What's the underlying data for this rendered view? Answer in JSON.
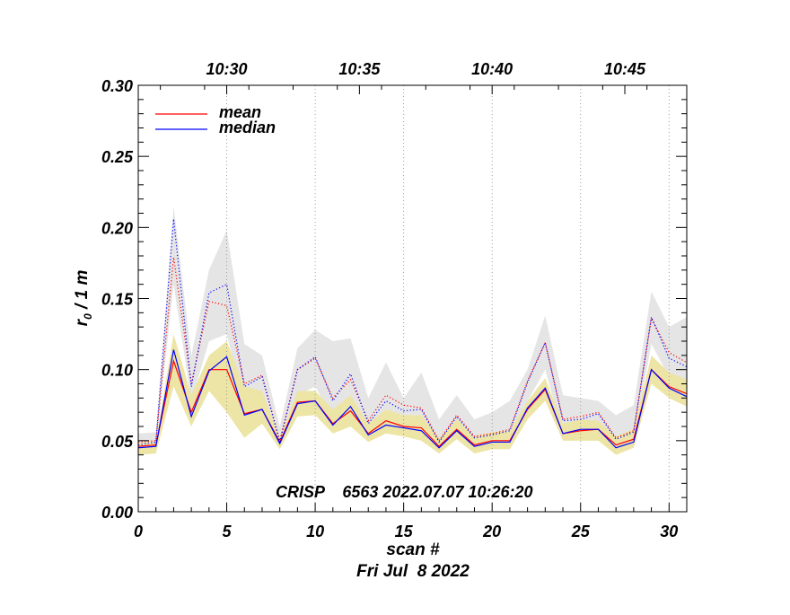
{
  "chart_data": {
    "type": "line",
    "title": "",
    "xlabel": "scan #",
    "xlabel2": "Fri Jul  8 2022",
    "ylabel_main": "r",
    "ylabel_sub": "0",
    "ylabel_rest": " / 1 m",
    "annotation": "CRISP    6563 2022.07.07 10:26:20",
    "xlim": [
      0,
      31
    ],
    "ylim": [
      0,
      0.3
    ],
    "x_ticks": [
      {
        "value": 0,
        "label": "0"
      },
      {
        "value": 5,
        "label": "5"
      },
      {
        "value": 10,
        "label": "10"
      },
      {
        "value": 15,
        "label": "15"
      },
      {
        "value": 20,
        "label": "20"
      },
      {
        "value": 25,
        "label": "25"
      },
      {
        "value": 30,
        "label": "30"
      }
    ],
    "y_ticks": [
      {
        "value": 0.0,
        "label": "0.00"
      },
      {
        "value": 0.05,
        "label": "0.05"
      },
      {
        "value": 0.1,
        "label": "0.10"
      },
      {
        "value": 0.15,
        "label": "0.15"
      },
      {
        "value": 0.2,
        "label": "0.20"
      },
      {
        "value": 0.25,
        "label": "0.25"
      },
      {
        "value": 0.3,
        "label": "0.30"
      }
    ],
    "top_ticks": [
      {
        "value": 5,
        "label": "10:30"
      },
      {
        "value": 12.5,
        "label": "10:35"
      },
      {
        "value": 20,
        "label": "10:40"
      },
      {
        "value": 27.5,
        "label": "10:45"
      }
    ],
    "time_gridlines": [
      5,
      10,
      15,
      20,
      25,
      30
    ],
    "grid": "vertical dotted",
    "legend_position": "top-left",
    "x": [
      0,
      1,
      2,
      3,
      4,
      5,
      6,
      7,
      8,
      9,
      10,
      11,
      12,
      13,
      14,
      15,
      16,
      17,
      18,
      19,
      20,
      21,
      22,
      23,
      24,
      25,
      26,
      27,
      28,
      29,
      30,
      31
    ],
    "series": [
      {
        "name": "mean",
        "color": "#ff0000",
        "style": "solid",
        "values": [
          0.046,
          0.047,
          0.106,
          0.07,
          0.1,
          0.1,
          0.069,
          0.072,
          0.049,
          0.077,
          0.078,
          0.062,
          0.071,
          0.055,
          0.064,
          0.06,
          0.059,
          0.046,
          0.058,
          0.047,
          0.05,
          0.05,
          0.072,
          0.086,
          0.055,
          0.057,
          0.058,
          0.047,
          0.051,
          0.1,
          0.088,
          0.083
        ]
      },
      {
        "name": "median",
        "color": "#0000ff",
        "style": "solid",
        "values": [
          0.045,
          0.046,
          0.114,
          0.067,
          0.099,
          0.109,
          0.068,
          0.072,
          0.048,
          0.076,
          0.078,
          0.061,
          0.074,
          0.054,
          0.061,
          0.059,
          0.057,
          0.045,
          0.057,
          0.046,
          0.049,
          0.049,
          0.073,
          0.087,
          0.055,
          0.058,
          0.058,
          0.045,
          0.049,
          0.1,
          0.087,
          0.081
        ]
      },
      {
        "color": "#ff0000",
        "style": "dotted",
        "values": [
          0.049,
          0.05,
          0.179,
          0.09,
          0.148,
          0.145,
          0.09,
          0.096,
          0.05,
          0.1,
          0.108,
          0.08,
          0.093,
          0.064,
          0.082,
          0.075,
          0.073,
          0.05,
          0.068,
          0.053,
          0.055,
          0.058,
          0.092,
          0.119,
          0.065,
          0.067,
          0.07,
          0.052,
          0.057,
          0.136,
          0.112,
          0.105
        ]
      },
      {
        "color": "#0000ff",
        "style": "dotted",
        "values": [
          0.047,
          0.049,
          0.206,
          0.088,
          0.154,
          0.16,
          0.088,
          0.095,
          0.049,
          0.1,
          0.109,
          0.078,
          0.097,
          0.062,
          0.078,
          0.071,
          0.072,
          0.049,
          0.067,
          0.052,
          0.054,
          0.057,
          0.091,
          0.119,
          0.064,
          0.065,
          0.069,
          0.051,
          0.056,
          0.137,
          0.108,
          0.102
        ]
      }
    ],
    "bands": [
      {
        "color": "#e5e5e5",
        "upper": [
          0.055,
          0.056,
          0.215,
          0.11,
          0.17,
          0.198,
          0.118,
          0.11,
          0.06,
          0.115,
          0.128,
          0.12,
          0.122,
          0.08,
          0.105,
          0.08,
          0.098,
          0.065,
          0.082,
          0.065,
          0.07,
          0.078,
          0.1,
          0.138,
          0.082,
          0.08,
          0.078,
          0.068,
          0.075,
          0.155,
          0.13,
          0.137
        ],
        "lower": [
          0.044,
          0.045,
          0.16,
          0.078,
          0.12,
          0.125,
          0.075,
          0.082,
          0.044,
          0.082,
          0.088,
          0.066,
          0.078,
          0.056,
          0.066,
          0.062,
          0.06,
          0.044,
          0.058,
          0.045,
          0.049,
          0.05,
          0.078,
          0.1,
          0.055,
          0.057,
          0.058,
          0.044,
          0.05,
          0.118,
          0.095,
          0.09
        ]
      },
      {
        "color": "#ede5a6",
        "upper": [
          0.048,
          0.05,
          0.125,
          0.082,
          0.11,
          0.12,
          0.088,
          0.085,
          0.052,
          0.085,
          0.085,
          0.072,
          0.082,
          0.062,
          0.072,
          0.068,
          0.068,
          0.052,
          0.065,
          0.053,
          0.056,
          0.057,
          0.078,
          0.094,
          0.062,
          0.065,
          0.064,
          0.053,
          0.058,
          0.11,
          0.098,
          0.093
        ]
      },
      {
        "color": "#ede5a6",
        "lower": [
          0.04,
          0.041,
          0.088,
          0.06,
          0.085,
          0.07,
          0.052,
          0.062,
          0.044,
          0.067,
          0.068,
          0.055,
          0.06,
          0.049,
          0.055,
          0.053,
          0.05,
          0.041,
          0.051,
          0.041,
          0.044,
          0.044,
          0.065,
          0.078,
          0.05,
          0.05,
          0.05,
          0.04,
          0.045,
          0.09,
          0.08,
          0.074
        ]
      }
    ]
  }
}
